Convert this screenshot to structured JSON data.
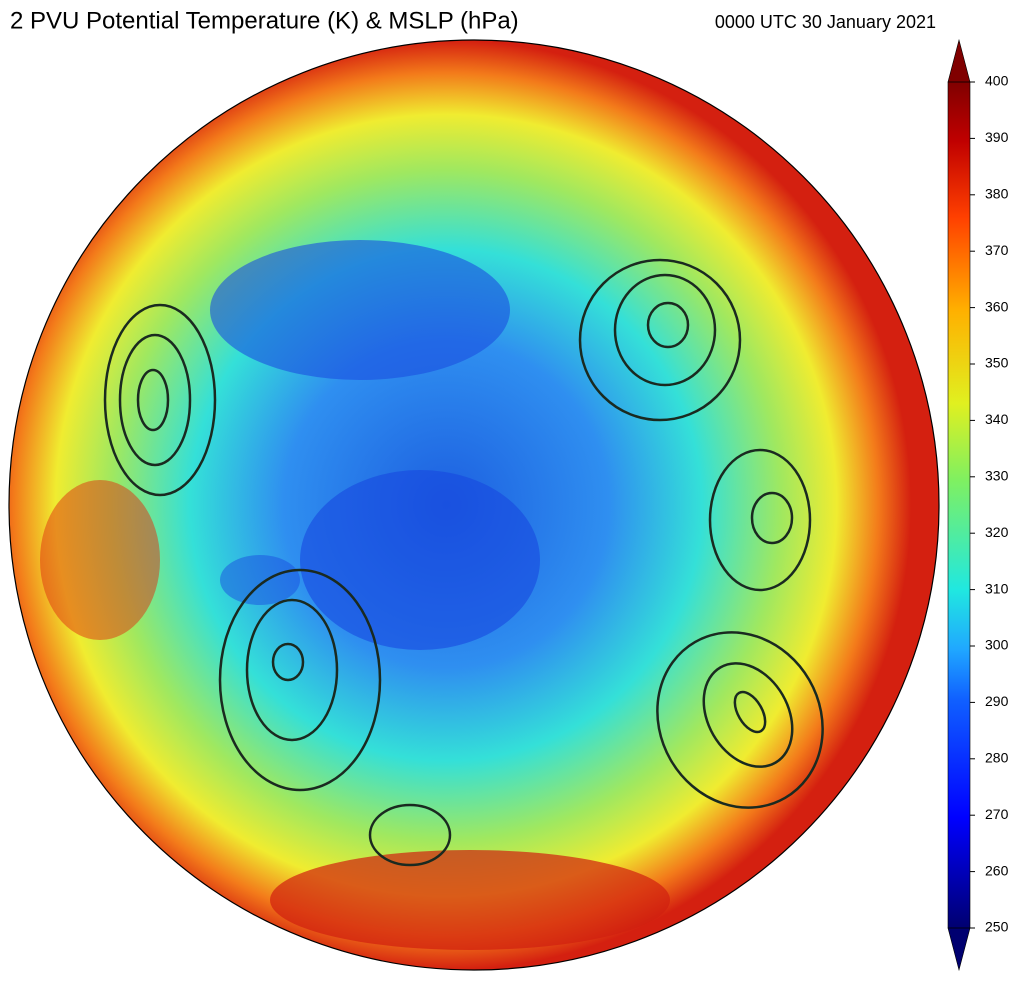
{
  "header": {
    "title": "2 PVU Potential Temperature (K) & MSLP (hPa)",
    "valid_time": "0000 UTC 30 January 2021"
  },
  "colorbar": {
    "range": [
      250,
      400
    ],
    "ticks": [
      250,
      260,
      270,
      280,
      290,
      300,
      310,
      320,
      330,
      340,
      350,
      360,
      370,
      380,
      390,
      400
    ]
  }
}
